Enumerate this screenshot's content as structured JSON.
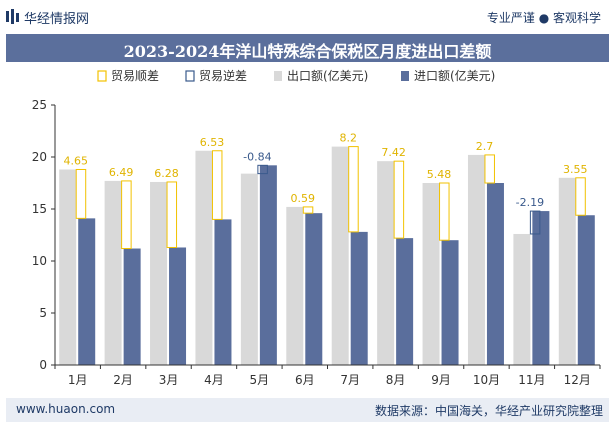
{
  "header": {
    "brand": "华经情报网",
    "tagline": "专业严谨 ● 客观科学"
  },
  "title": "2023-2024年洋山特殊综合保税区月度进出口差额",
  "footer": {
    "left": "www.huaon.com",
    "right": "数据来源：中国海关，华经产业研究院整理"
  },
  "colors": {
    "title_band": "#5b6f9c",
    "export": "#d9d9d9",
    "import": "#5a6e9c",
    "surplus": "#f2c200",
    "deficit": "#3a5a8c",
    "surplus_label": "#e0b400",
    "deficit_label": "#3a5a8c"
  },
  "chart_data": {
    "type": "bar",
    "title": "2023-2024年洋山特殊综合保税区月度进出口差额",
    "categories": [
      "1月",
      "2月",
      "3月",
      "4月",
      "5月",
      "6月",
      "7月",
      "8月",
      "9月",
      "10月",
      "11月",
      "12月"
    ],
    "legend": [
      "贸易顺差",
      "贸易逆差",
      "出口额(亿美元)",
      "进口额(亿美元)"
    ],
    "legend_position": "top",
    "series": [
      {
        "name": "出口额(亿美元)",
        "values": [
          18.8,
          17.7,
          17.6,
          20.6,
          18.4,
          15.2,
          21.0,
          19.6,
          17.5,
          20.2,
          12.6,
          18.0
        ]
      },
      {
        "name": "进口额(亿美元)",
        "values": [
          14.1,
          11.2,
          11.3,
          14.0,
          19.2,
          14.6,
          12.8,
          12.2,
          12.0,
          17.5,
          14.8,
          14.4
        ]
      }
    ],
    "balance": [
      4.65,
      6.49,
      6.28,
      6.53,
      -0.84,
      0.59,
      8.2,
      7.42,
      5.48,
      2.7,
      -2.19,
      3.55
    ],
    "balance_labels": [
      "4.65",
      "6.49",
      "6.28",
      "6.53",
      "-0.84",
      "0.59",
      "8.2",
      "7.42",
      "5.48",
      "2.7",
      "-2.19",
      "3.55"
    ],
    "ylim": [
      0,
      25
    ],
    "yticks": [
      "0",
      "5",
      "10",
      "15",
      "20",
      "25"
    ],
    "grid": false
  }
}
